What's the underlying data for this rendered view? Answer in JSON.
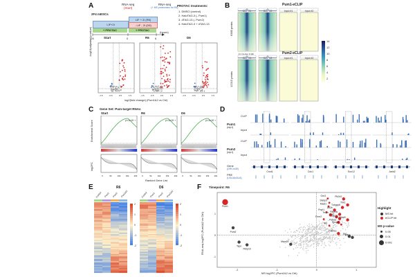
{
  "panel_letters": [
    "A",
    "B",
    "C",
    "D",
    "E",
    "F"
  ],
  "colors": {
    "red": "#d62728",
    "blue": "#3a6fb5",
    "green": "#a8d98a",
    "purple": "#b79be0",
    "orange": "#f2b25a",
    "lightblue": "#bcd6f0",
    "teal": "#5fa8a8"
  },
  "panelA": {
    "cell_line": "2F4 mESCs",
    "rna_seq_1": "RNA-seq",
    "rna_seq_1_sub": "(Start)",
    "rna_seq_2": "RNA-seq",
    "rna_seq_2_sub": "(+ MS proteomics for R6)",
    "lif2i": "LIF+2i",
    "lif2i_r6": "LIF + 2i (R6)",
    "lif2i_d6": "- LIF - 2i (D6)",
    "protac": "+ PROTAC",
    "protac2": "+ PROTAC",
    "axis_ticks": [
      "-24",
      "0",
      "6"
    ],
    "axis_unit": "(hours)",
    "treat_title": "PROTAC treatments:",
    "treatments": [
      "1.  DMSO (control)",
      "2.  HaloTAG-3 (- Pum1)",
      "3.  dTAG-13 (- Pum2)",
      "4.  HaloTAG-3 + dTAG-13"
    ],
    "volcano_titles": [
      "Start",
      "R6",
      "D6"
    ],
    "ylabel": "-log10(adjusted p-value)",
    "xlabel": "log2(fold change) (Pum1&2 vs Ctrl)",
    "x_ticks": [
      "-1.5",
      "-0.5",
      "0.5",
      "1.5"
    ]
  },
  "panelB": {
    "title1": "Pum1-eCLIP",
    "title2": "Pum2-eCLIP",
    "cols": [
      "CLIP #1",
      "CLIP #2",
      "Input #1",
      "Input #2"
    ],
    "row1_label": "6389 peaks",
    "row2_label": "12215 peaks",
    "xaxis": "-0.1   Center   0.1kb",
    "scale_ticks": [
      "14",
      "12",
      "10",
      "8",
      "6",
      "4",
      "2"
    ]
  },
  "panelC": {
    "gene_set": "Gene Set: Pum-target RNAs",
    "cols": [
      "Start",
      "R6",
      "D6"
    ],
    "pvals": [
      "p<1x10⁻³",
      "p<1x10⁻³",
      "p<1x10⁻³"
    ],
    "ylabel1": "Enrichment Score",
    "ylabel2": "log2FC",
    "xlabel": "Ranked Gene List",
    "x_ticks": [
      "0",
      "5k",
      "10k",
      "15k",
      "20k"
    ]
  },
  "panelD": {
    "rows": [
      "CLIP",
      "Input",
      "CLIP",
      "Input"
    ],
    "proteins": [
      "Pum1",
      "Pum2"
    ],
    "rep": "(rep1)",
    "gene_label": "Gene",
    "gene_sub": "(GRCm39)",
    "pre_label": "PRE",
    "pre_sub": "(UGUAnAUA)",
    "genes": [
      "Cnot1",
      "Cdc1",
      "Sox12",
      "Jarid2"
    ]
  },
  "panelE": {
    "titles": [
      "R6",
      "D6"
    ],
    "cols": [
      "Control",
      "-Pum1",
      "-Pum2",
      "-Pum1&2"
    ],
    "scale_ticks": [
      "2",
      "1",
      "0",
      "-1",
      "-2"
    ]
  },
  "chart_data": {
    "type": "scatter",
    "title": "Timepoint: R6",
    "xlabel": "MS log2FC (Pum1&2 vs Ctrl)",
    "ylabel": "RNA-seq log2FC (Pum1&2 vs Ctrl)",
    "xlim": [
      -2.5,
      1.5
    ],
    "ylim": [
      -1.5,
      2.0
    ],
    "x_ticks": [
      "-2",
      "-1",
      "0",
      "1"
    ],
    "y_ticks": [
      "-1",
      "0",
      "1"
    ],
    "highlight_title": "Highlight",
    "highlight_items": [
      "MS hit",
      "eCLIP hit"
    ],
    "ms_title": "MS p-value",
    "ms_items": [
      "0.05",
      "0.01",
      "0.001"
    ],
    "labeled_points": [
      {
        "label": "Pum1",
        "x": -2.3,
        "y": 1.55,
        "size": 3,
        "color": "red"
      },
      {
        "label": "Pum2",
        "x": -2.1,
        "y": 0.35,
        "size": 2,
        "color": "gray"
      },
      {
        "label": "Pik3r3",
        "x": 0.68,
        "y": 1.7,
        "size": 2,
        "color": "red"
      },
      {
        "label": "Gm3",
        "x": 0.28,
        "y": 1.72,
        "size": 1,
        "color": "red"
      },
      {
        "label": "Tbk1",
        "x": 0.78,
        "y": 1.42,
        "size": 2,
        "color": "red"
      },
      {
        "label": "Stebp3",
        "x": 0.32,
        "y": 1.52,
        "size": 1,
        "color": "red"
      },
      {
        "label": "Tubgcp6",
        "x": 0.65,
        "y": 1.3,
        "size": 2,
        "color": "red"
      },
      {
        "label": "Mast1",
        "x": 0.3,
        "y": 1.35,
        "size": 1,
        "color": "red"
      },
      {
        "label": "Atf2b",
        "x": 0.45,
        "y": 1.18,
        "size": 2,
        "color": "red"
      },
      {
        "label": "Pnpt1",
        "x": 0.25,
        "y": 1.08,
        "size": 1,
        "color": "red"
      },
      {
        "label": "Tmpo",
        "x": 0.35,
        "y": 0.95,
        "size": 2,
        "color": "red"
      },
      {
        "label": "Rbpms",
        "x": 0.58,
        "y": 0.98,
        "size": 2,
        "color": "red"
      },
      {
        "label": "Fnr1",
        "x": 0.5,
        "y": 0.86,
        "size": 2,
        "color": "red"
      },
      {
        "label": "Zfp22",
        "x": 0.58,
        "y": 0.78,
        "size": 2,
        "color": "red"
      },
      {
        "label": "Fmrr2",
        "x": 0.18,
        "y": 0.75,
        "size": 1,
        "color": "red"
      },
      {
        "label": "Rbm5",
        "x": 0.78,
        "y": 0.72,
        "size": 2,
        "color": "red"
      },
      {
        "label": "Pafyse",
        "x": 0.55,
        "y": 0.6,
        "size": 2,
        "color": "red"
      },
      {
        "label": "Spopl1",
        "x": 0.62,
        "y": 0.5,
        "size": 1,
        "color": "red"
      },
      {
        "label": "Nf1",
        "x": 0.32,
        "y": 0.45,
        "size": 1,
        "color": "red"
      },
      {
        "label": "Cdkn1a",
        "x": 0.55,
        "y": 0.08,
        "size": 2,
        "color": "red"
      },
      {
        "label": "Eif3a",
        "x": 0.9,
        "y": -0.1,
        "size": 2,
        "color": "gray"
      },
      {
        "label": "Sfr1",
        "x": 0.82,
        "y": -0.05,
        "size": 2,
        "color": "gray"
      },
      {
        "label": "Tapo",
        "x": -1.95,
        "y": -0.32,
        "size": 2,
        "color": "gray"
      },
      {
        "label": "Fkbp1b",
        "x": -1.75,
        "y": -0.45,
        "size": 2,
        "color": "gray"
      },
      {
        "label": "Mrps14",
        "x": -0.65,
        "y": -0.42,
        "size": 2,
        "color": "gray"
      }
    ]
  }
}
